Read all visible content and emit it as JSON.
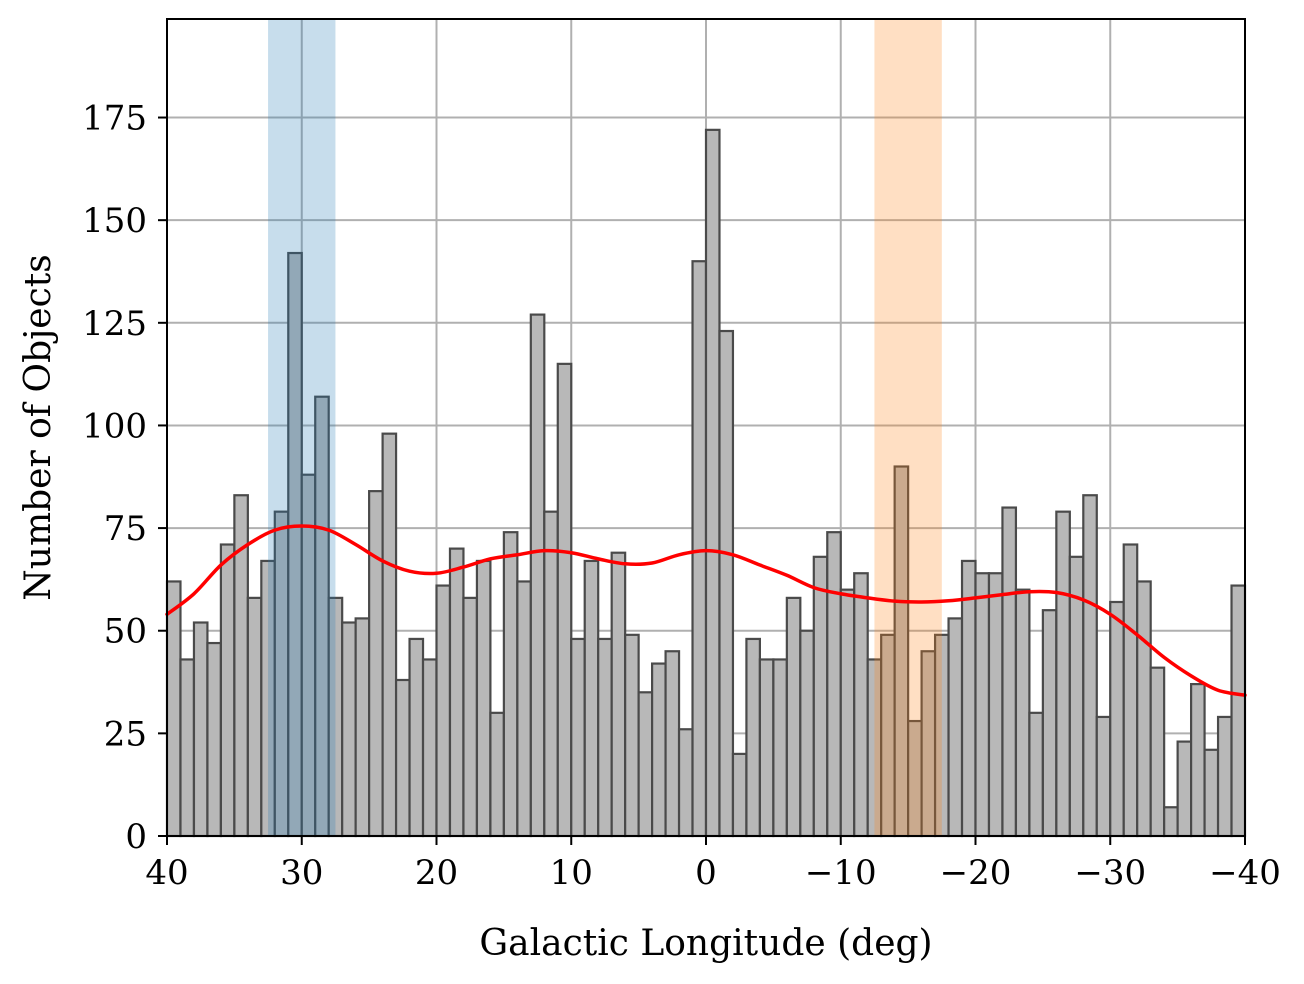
{
  "chart_data": {
    "type": "bar",
    "title": "",
    "xlabel": "Galactic Longitude (deg)",
    "ylabel": "Number of Objects",
    "xlim": [
      40,
      -40
    ],
    "ylim": [
      0,
      199
    ],
    "grid": true,
    "bin_width_deg": 1,
    "bin_start_deg": 40,
    "x_ticks": [
      {
        "value": 40,
        "label": "40"
      },
      {
        "value": 30,
        "label": "30"
      },
      {
        "value": 20,
        "label": "20"
      },
      {
        "value": 10,
        "label": "10"
      },
      {
        "value": 0,
        "label": "0"
      },
      {
        "value": -10,
        "label": "−10"
      },
      {
        "value": -20,
        "label": "−20"
      },
      {
        "value": -30,
        "label": "−30"
      },
      {
        "value": -40,
        "label": "−40"
      }
    ],
    "y_ticks": [
      {
        "value": 0,
        "label": "0"
      },
      {
        "value": 25,
        "label": "25"
      },
      {
        "value": 50,
        "label": "50"
      },
      {
        "value": 75,
        "label": "75"
      },
      {
        "value": 100,
        "label": "100"
      },
      {
        "value": 125,
        "label": "125"
      },
      {
        "value": 150,
        "label": "150"
      },
      {
        "value": 175,
        "label": "175"
      }
    ],
    "histogram_counts": [
      62,
      43,
      52,
      47,
      71,
      83,
      58,
      67,
      79,
      142,
      88,
      107,
      58,
      52,
      53,
      84,
      98,
      38,
      48,
      43,
      61,
      70,
      58,
      67,
      30,
      74,
      62,
      127,
      79,
      115,
      48,
      67,
      48,
      69,
      49,
      35,
      42,
      45,
      26,
      140,
      172,
      123,
      20,
      48,
      43,
      43,
      58,
      50,
      68,
      74,
      60,
      64,
      43,
      49,
      90,
      28,
      45,
      49,
      53,
      67,
      64,
      64,
      80,
      60,
      30,
      55,
      79,
      68,
      83,
      29,
      57,
      71,
      62,
      41,
      7,
      23,
      37,
      21,
      29,
      61
    ],
    "highlight_regions": [
      {
        "name": "blue-region",
        "from": 32.5,
        "to": 27.5,
        "color": "#1f77b4",
        "opacity": 0.25
      },
      {
        "name": "orange-region",
        "from": -12.5,
        "to": -17.5,
        "color": "#ff7f0e",
        "opacity": 0.25
      }
    ],
    "smooth_curve": {
      "color": "#ff0000",
      "points": [
        [
          40,
          54
        ],
        [
          38,
          59
        ],
        [
          36,
          66
        ],
        [
          34,
          71
        ],
        [
          32,
          74.5
        ],
        [
          30,
          75.5
        ],
        [
          28,
          74.5
        ],
        [
          26,
          71
        ],
        [
          24,
          67
        ],
        [
          22,
          64.5
        ],
        [
          20,
          64
        ],
        [
          18,
          65.5
        ],
        [
          16,
          67.5
        ],
        [
          14,
          68.5
        ],
        [
          12,
          69.5
        ],
        [
          10,
          69
        ],
        [
          8,
          67.5
        ],
        [
          6,
          66.3
        ],
        [
          4,
          66.5
        ],
        [
          2,
          68.5
        ],
        [
          0,
          69.5
        ],
        [
          -2,
          68.5
        ],
        [
          -4,
          66
        ],
        [
          -6,
          63.5
        ],
        [
          -8,
          60.5
        ],
        [
          -10,
          59
        ],
        [
          -12,
          58
        ],
        [
          -14,
          57.2
        ],
        [
          -16,
          57
        ],
        [
          -18,
          57.3
        ],
        [
          -20,
          58
        ],
        [
          -22,
          58.8
        ],
        [
          -24,
          59.5
        ],
        [
          -26,
          59.3
        ],
        [
          -28,
          57.5
        ],
        [
          -30,
          54
        ],
        [
          -32,
          49
        ],
        [
          -34,
          43.5
        ],
        [
          -36,
          39
        ],
        [
          -38,
          35.5
        ],
        [
          -40,
          34.3
        ]
      ]
    },
    "colors": {
      "bar_fill": "#b8b8b8",
      "bar_edge": "#4a4a4a",
      "grid": "#b0b0b0",
      "axes": "#000000"
    }
  }
}
